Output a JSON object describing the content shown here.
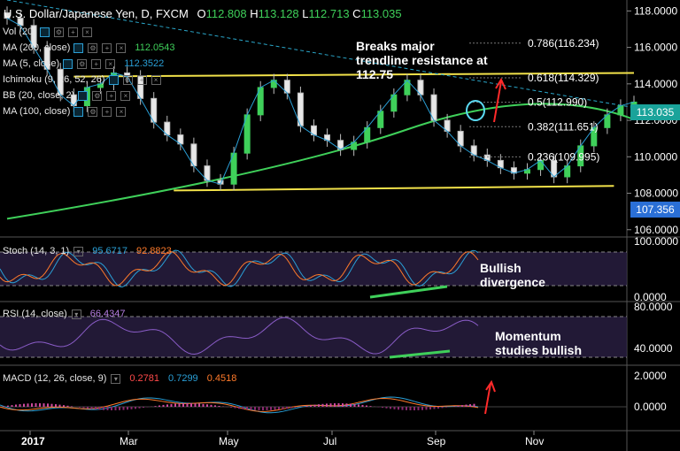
{
  "header": {
    "symbol": "U.S. Dollar/Japanese Yen, D, FXCM",
    "open_label": "O",
    "open": "112.808",
    "high_label": "H",
    "high": "113.128",
    "low_label": "L",
    "low": "112.713",
    "close_label": "C",
    "close": "113.035"
  },
  "indicators_main": [
    {
      "label": "Vol (20)",
      "value": ""
    },
    {
      "label": "MA (200, close)",
      "value": "112.0543",
      "color": "#3fd05a"
    },
    {
      "label": "MA (5, close)",
      "value": "112.3522",
      "color": "#2a9fd6"
    },
    {
      "label": "Ichimoku (9, 26, 52, 26)",
      "value": ""
    },
    {
      "label": "BB (20, close, 2)",
      "value": ""
    },
    {
      "label": "MA (100, close)",
      "value": ""
    }
  ],
  "annotations": {
    "trendline_note": "Breaks major trendline resistance at 112.75",
    "stoch_note": "Bullish divergence",
    "rsi_note": "Momentum studies bullish"
  },
  "fib_levels": [
    {
      "label": "0.786(116.234)",
      "price": 116.234
    },
    {
      "label": "0.618(114.329)",
      "price": 114.329
    },
    {
      "label": "0.5(112.990)",
      "price": 112.99
    },
    {
      "label": "0.382(111.651)",
      "price": 111.651
    },
    {
      "label": "0.236(109.995)",
      "price": 109.995
    }
  ],
  "price_badges": {
    "current": "113.035",
    "current_color": "#1aa39a",
    "ma": "107.356",
    "ma_color": "#2a6fd6"
  },
  "stoch": {
    "label": "Stoch (14, 3, 1)",
    "k": "95.6717",
    "d": "92.8823",
    "levels": [
      "100.0000",
      "0.0000"
    ]
  },
  "rsi": {
    "label": "RSI (14, close)",
    "value": "66.4347",
    "levels": [
      "80.0000",
      "40.0000"
    ]
  },
  "macd": {
    "label": "MACD (12, 26, close, 9)",
    "hist": "0.2781",
    "macd": "0.7299",
    "signal": "0.4518",
    "levels": [
      "2.0000",
      "0.0000"
    ]
  },
  "chart_data": {
    "type": "line",
    "instrument": "U.S. Dollar/Japanese Yen, D, FXCM",
    "y_ticks": [
      "118.0000",
      "116.0000",
      "114.0000",
      "112.0000",
      "110.0000",
      "108.0000",
      "106.0000"
    ],
    "ylim": [
      105.6,
      118.6
    ],
    "x_ticks": [
      "2017",
      "Mar",
      "May",
      "Jul",
      "Sep",
      "Nov"
    ],
    "price_series": {
      "name": "",
      "x": [
        0,
        6,
        12,
        18,
        24,
        30,
        36,
        42,
        48,
        54,
        60,
        66,
        72,
        78,
        84,
        90,
        96,
        102,
        108,
        114,
        120,
        126,
        132,
        138,
        144,
        150,
        156,
        162,
        168,
        174,
        180,
        186,
        192,
        198,
        204,
        210,
        216,
        222,
        228,
        234,
        240,
        246,
        252,
        258,
        264,
        270,
        276,
        282
      ],
      "close": [
        117.6,
        117.2,
        116.0,
        114.8,
        113.4,
        112.8,
        113.8,
        114.0,
        114.6,
        114.4,
        113.2,
        111.9,
        111.2,
        110.7,
        109.5,
        108.7,
        108.5,
        110.2,
        112.3,
        113.8,
        114.2,
        113.5,
        111.7,
        111.2,
        110.9,
        110.4,
        110.8,
        111.6,
        112.5,
        113.4,
        114.2,
        113.4,
        112.0,
        111.4,
        110.6,
        110.1,
        109.8,
        109.4,
        109.1,
        109.3,
        109.8,
        108.9,
        109.5,
        110.6,
        111.6,
        112.3,
        112.8,
        113.0
      ]
    },
    "ma200": {
      "x": [
        0,
        282
      ],
      "y": [
        106.6,
        112.05
      ]
    },
    "trendlines": [
      {
        "name": "resistance",
        "from": [
          30,
          114.4
        ],
        "to": [
          282,
          114.6
        ]
      },
      {
        "name": "support",
        "from": [
          75,
          108.15
        ],
        "to": [
          273,
          108.4
        ]
      },
      {
        "name": "falling",
        "from": [
          0,
          118.6
        ],
        "to": [
          282,
          112.7
        ]
      }
    ]
  }
}
